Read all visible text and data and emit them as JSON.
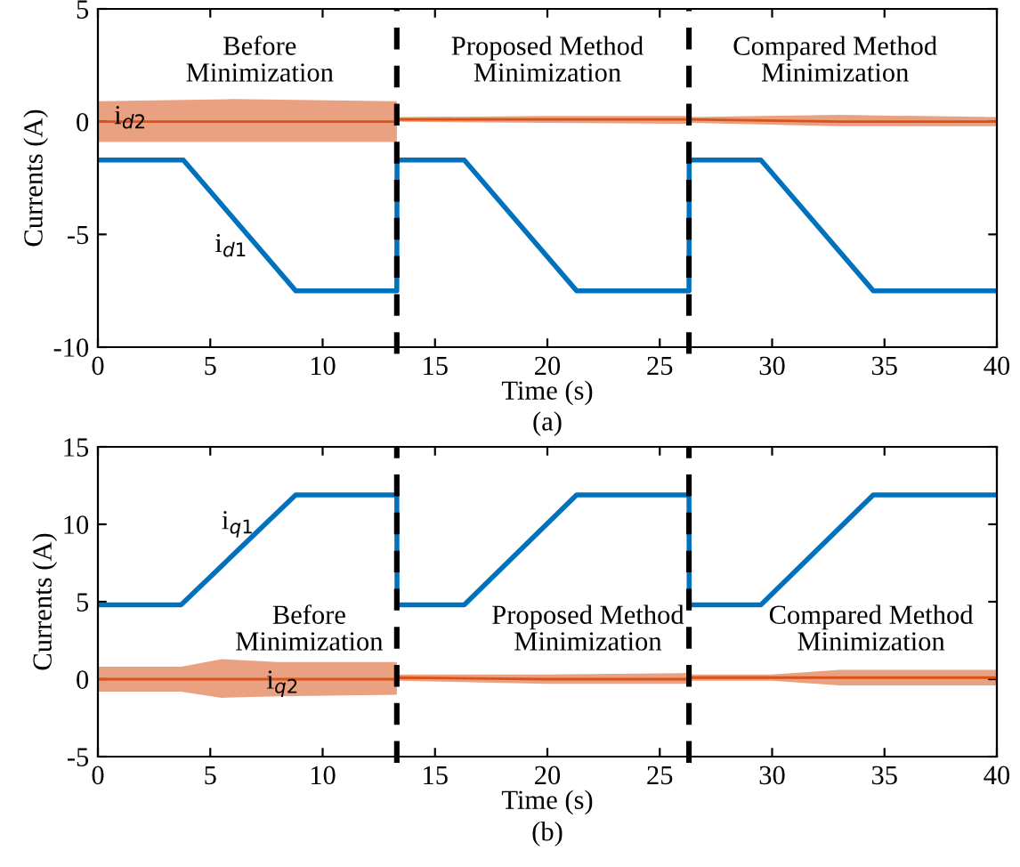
{
  "chart_data": [
    {
      "type": "line",
      "xlabel": "Time (s)",
      "ylabel": "Currents (A)",
      "xlim": [
        0,
        40
      ],
      "ylim": [
        -10,
        5
      ],
      "xticks": [
        0,
        5,
        10,
        15,
        20,
        25,
        30,
        35,
        40
      ],
      "yticks": [
        -10,
        -5,
        0,
        5
      ],
      "grid": false,
      "legend": false,
      "series": [
        {
          "name": "i$_{d2}$",
          "color": "#d95319",
          "x": [
            0,
            6,
            13.3,
            13.31,
            20,
            26.3,
            26.31,
            33,
            40
          ],
          "values": [
            0,
            0,
            0,
            0.1,
            0.1,
            0.1,
            0.1,
            0,
            0
          ],
          "lower": [
            -0.9,
            -0.9,
            -0.9,
            0,
            -0.05,
            -0.1,
            -0.05,
            -0.2,
            -0.2
          ],
          "upper": [
            0.9,
            1.0,
            0.9,
            0.2,
            0.25,
            0.25,
            0.2,
            0.3,
            0.2
          ]
        },
        {
          "name": "i$_{d1}$",
          "color": "#0072bd",
          "x": [
            0,
            3.8,
            8.8,
            13.3,
            13.31,
            16.3,
            21.3,
            26.3,
            26.31,
            29.5,
            34.5,
            40
          ],
          "values": [
            -1.7,
            -1.7,
            -7.5,
            -7.5,
            -1.7,
            -1.7,
            -7.5,
            -7.5,
            -1.7,
            -1.7,
            -7.5,
            -7.5
          ]
        }
      ],
      "ref_lines": [
        {
          "axis": "x",
          "value": 13.3,
          "color": "#000000",
          "line_style": "dashed"
        },
        {
          "axis": "x",
          "value": 26.3,
          "color": "#000000",
          "line_style": "dashed"
        }
      ],
      "annotations": [
        "Before\nMinimization",
        "Proposed Method\nMinimization",
        "Compared Method\nMinimization",
        "(a)"
      ]
    },
    {
      "type": "line",
      "xlabel": "Time (s)",
      "ylabel": "Currents (A)",
      "xlim": [
        0,
        40
      ],
      "ylim": [
        -5,
        15
      ],
      "xticks": [
        0,
        5,
        10,
        15,
        20,
        25,
        30,
        35,
        40
      ],
      "yticks": [
        -5,
        0,
        5,
        10,
        15
      ],
      "grid": false,
      "legend": false,
      "series": [
        {
          "name": "i$_{q2}$",
          "color": "#d95319",
          "x": [
            0,
            3.7,
            5.5,
            8,
            13.3,
            13.31,
            20,
            26.3,
            26.31,
            30,
            33,
            40
          ],
          "values": [
            0,
            0,
            0,
            0,
            0,
            0.1,
            0,
            0,
            0.1,
            0.1,
            0.1,
            0.1
          ],
          "lower": [
            -0.8,
            -0.8,
            -1.2,
            -1.1,
            -1.0,
            -0.1,
            -0.3,
            -0.3,
            -0.1,
            -0.1,
            -0.4,
            -0.4
          ],
          "upper": [
            0.8,
            0.8,
            1.3,
            1.1,
            1.1,
            0.3,
            0.3,
            0.4,
            0.3,
            0.3,
            0.6,
            0.6
          ]
        },
        {
          "name": "i$_{q1}$",
          "color": "#0072bd",
          "x": [
            0,
            3.7,
            8.8,
            13.3,
            13.31,
            16.3,
            21.3,
            26.3,
            26.31,
            29.5,
            34.5,
            40
          ],
          "values": [
            4.8,
            4.8,
            11.9,
            11.9,
            4.8,
            4.8,
            11.9,
            11.9,
            4.8,
            4.8,
            11.9,
            11.9
          ]
        }
      ],
      "ref_lines": [
        {
          "axis": "x",
          "value": 13.3,
          "color": "#000000",
          "line_style": "dashed"
        },
        {
          "axis": "x",
          "value": 26.3,
          "color": "#000000",
          "line_style": "dashed"
        }
      ],
      "annotations": [
        "Before\nMinimization",
        "Proposed Method\nMinimization",
        "Compared Method\nMinimization",
        "(b)"
      ]
    }
  ]
}
